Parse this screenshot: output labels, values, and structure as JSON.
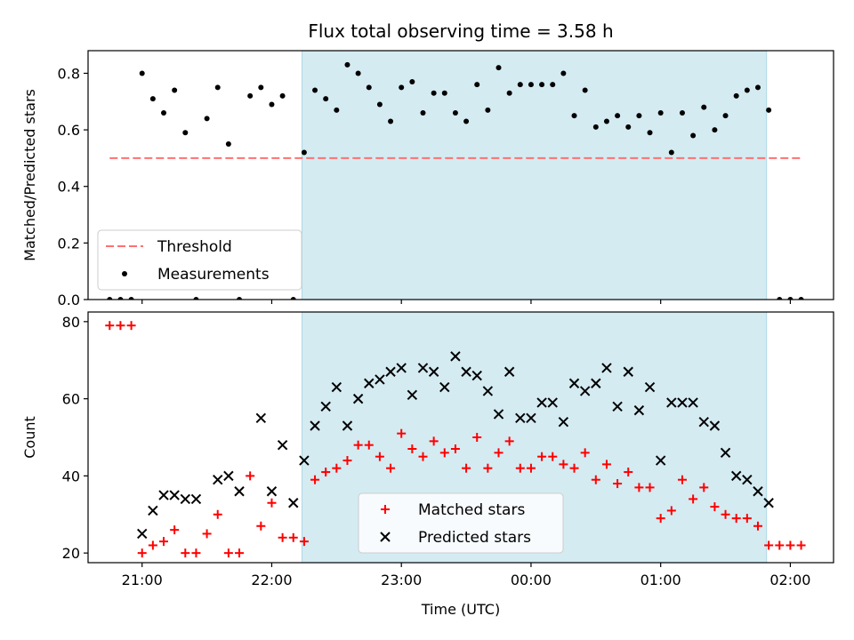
{
  "chart_data": {
    "type": "scatter",
    "title": "Flux total observing time = 3.58 h",
    "xlabel": "Time (UTC)",
    "x_unit": "hours UTC (values >= 24 are after midnight)",
    "xlim": [
      "20:35",
      "02:20"
    ],
    "x_ticks": [
      "21:00",
      "22:00",
      "23:00",
      "00:00",
      "01:00",
      "02:00"
    ],
    "shaded_interval": {
      "start": "22:14",
      "end": "01:49",
      "color": "#add8e6"
    },
    "colors": {
      "threshold": "#ff7070",
      "measurements": "#000000",
      "matched": "#ff0000",
      "predicted": "#000000",
      "shade": "#add8e6"
    },
    "panels": [
      {
        "ylabel": "Matched/Predicted stars",
        "ylim": [
          0.0,
          0.88
        ],
        "y_ticks": [
          "0.0",
          "0.2",
          "0.4",
          "0.6",
          "0.8"
        ],
        "legend": {
          "placement": "lower-left",
          "entries": [
            "Threshold",
            "Measurements"
          ]
        },
        "threshold": {
          "name": "Threshold",
          "y": 0.5,
          "x_range": [
            "20:45",
            "02:05"
          ]
        },
        "series": [
          {
            "name": "Measurements",
            "marker": "dot",
            "x": [
              "20:45",
              "20:50",
              "20:55",
              "21:00",
              "21:05",
              "21:10",
              "21:15",
              "21:20",
              "21:25",
              "21:30",
              "21:35",
              "21:40",
              "21:45",
              "21:50",
              "21:55",
              "22:00",
              "22:05",
              "22:10",
              "22:15",
              "22:20",
              "22:25",
              "22:30",
              "22:35",
              "22:40",
              "22:45",
              "22:50",
              "22:55",
              "23:00",
              "23:05",
              "23:10",
              "23:15",
              "23:20",
              "23:25",
              "23:30",
              "23:35",
              "23:40",
              "23:45",
              "23:50",
              "23:55",
              "00:00",
              "00:05",
              "00:10",
              "00:15",
              "00:20",
              "00:25",
              "00:30",
              "00:35",
              "00:40",
              "00:45",
              "00:50",
              "00:55",
              "01:00",
              "01:05",
              "01:10",
              "01:15",
              "01:20",
              "01:25",
              "01:30",
              "01:35",
              "01:40",
              "01:45",
              "01:50",
              "01:55",
              "02:00",
              "02:05"
            ],
            "y": [
              0.0,
              0.0,
              0.0,
              0.8,
              0.71,
              0.66,
              0.74,
              0.59,
              0.0,
              0.64,
              0.75,
              0.55,
              0.0,
              0.72,
              0.75,
              0.69,
              0.72,
              0.0,
              0.52,
              0.74,
              0.71,
              0.67,
              0.83,
              0.8,
              0.75,
              0.69,
              0.63,
              0.75,
              0.77,
              0.66,
              0.73,
              0.73,
              0.66,
              0.63,
              0.76,
              0.67,
              0.82,
              0.73,
              0.76,
              0.76,
              0.76,
              0.76,
              0.8,
              0.65,
              0.74,
              0.61,
              0.63,
              0.65,
              0.61,
              0.65,
              0.59,
              0.66,
              0.52,
              0.66,
              0.58,
              0.68,
              0.6,
              0.65,
              0.72,
              0.74,
              0.75,
              0.67,
              0.0,
              0.0,
              0.0
            ]
          }
        ]
      },
      {
        "ylabel": "Count",
        "ylim": [
          17.5,
          82.5
        ],
        "y_ticks": [
          "20",
          "40",
          "60",
          "80"
        ],
        "legend": {
          "placement": "lower-center",
          "entries": [
            "Matched stars",
            "Predicted stars"
          ]
        },
        "series": [
          {
            "name": "Matched stars",
            "marker": "plus",
            "x": [
              "20:45",
              "20:50",
              "20:55",
              "21:00",
              "21:05",
              "21:10",
              "21:15",
              "21:20",
              "21:25",
              "21:30",
              "21:35",
              "21:40",
              "21:45",
              "21:50",
              "21:55",
              "22:00",
              "22:05",
              "22:10",
              "22:15",
              "22:20",
              "22:25",
              "22:30",
              "22:35",
              "22:40",
              "22:45",
              "22:50",
              "22:55",
              "23:00",
              "23:05",
              "23:10",
              "23:15",
              "23:20",
              "23:25",
              "23:30",
              "23:35",
              "23:40",
              "23:45",
              "23:50",
              "23:55",
              "00:00",
              "00:05",
              "00:10",
              "00:15",
              "00:20",
              "00:25",
              "00:30",
              "00:35",
              "00:40",
              "00:45",
              "00:50",
              "00:55",
              "01:00",
              "01:05",
              "01:10",
              "01:15",
              "01:20",
              "01:25",
              "01:30",
              "01:35",
              "01:40",
              "01:45",
              "01:50",
              "01:55",
              "02:00",
              "02:05"
            ],
            "y": [
              79,
              79,
              79,
              20,
              22,
              23,
              26,
              20,
              20,
              25,
              30,
              20,
              20,
              40,
              27,
              33,
              24,
              24,
              23,
              39,
              41,
              42,
              44,
              48,
              48,
              45,
              42,
              51,
              47,
              45,
              49,
              46,
              47,
              42,
              50,
              42,
              46,
              49,
              42,
              42,
              45,
              45,
              43,
              42,
              46,
              39,
              43,
              38,
              41,
              37,
              37,
              29,
              31,
              39,
              34,
              37,
              32,
              30,
              29,
              29,
              27,
              22,
              22,
              22,
              22
            ]
          },
          {
            "name": "Predicted stars",
            "marker": "cross",
            "x": [
              "21:00",
              "21:05",
              "21:10",
              "21:15",
              "21:20",
              "21:25",
              "21:35",
              "21:40",
              "21:45",
              "21:55",
              "22:00",
              "22:05",
              "22:10",
              "22:15",
              "22:20",
              "22:25",
              "22:30",
              "22:35",
              "22:40",
              "22:45",
              "22:50",
              "22:55",
              "23:00",
              "23:05",
              "23:10",
              "23:15",
              "23:20",
              "23:25",
              "23:30",
              "23:35",
              "23:40",
              "23:45",
              "23:50",
              "23:55",
              "00:00",
              "00:05",
              "00:10",
              "00:15",
              "00:20",
              "00:25",
              "00:30",
              "00:35",
              "00:40",
              "00:45",
              "00:50",
              "00:55",
              "01:00",
              "01:05",
              "01:10",
              "01:15",
              "01:20",
              "01:25",
              "01:30",
              "01:35",
              "01:40",
              "01:45",
              "01:50"
            ],
            "y": [
              25,
              31,
              35,
              35,
              34,
              34,
              39,
              40,
              36,
              55,
              36,
              48,
              33,
              44,
              53,
              58,
              63,
              53,
              60,
              64,
              65,
              67,
              68,
              61,
              68,
              67,
              63,
              71,
              67,
              66,
              62,
              56,
              67,
              55,
              55,
              59,
              59,
              54,
              64,
              62,
              64,
              68,
              58,
              67,
              57,
              63,
              44,
              59,
              59,
              59,
              54,
              53,
              46,
              40,
              39,
              36,
              33
            ]
          }
        ]
      }
    ]
  }
}
